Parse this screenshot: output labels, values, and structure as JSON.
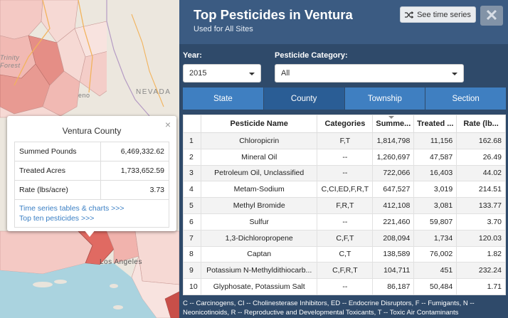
{
  "map": {
    "labels": {
      "nevada": "NEVADA",
      "trinity_1": "Trinity",
      "trinity_2": "Forest",
      "reno": "eno",
      "los_angeles": "Los Angeles"
    }
  },
  "popup": {
    "title": "Ventura County",
    "close": "×",
    "rows": [
      {
        "label": "Summed Pounds",
        "value": "6,469,332.62"
      },
      {
        "label": "Treated Acres",
        "value": "1,733,652.59"
      },
      {
        "label": "Rate (lbs/acre)",
        "value": "3.73"
      }
    ],
    "links": {
      "time_series": "Time series tables & charts >>>",
      "top_ten": "Top ten pesticides >>>"
    }
  },
  "panel": {
    "title": "Top Pesticides in Ventura",
    "subtitle": "Used for All Sites",
    "time_series_button": "See time series",
    "close_button": "✕",
    "year": {
      "label": "Year:",
      "value": "2015"
    },
    "category": {
      "label": "Pesticide Category:",
      "value": "All"
    },
    "tabs": [
      {
        "label": "State",
        "active": false
      },
      {
        "label": "County",
        "active": true
      },
      {
        "label": "Township",
        "active": false
      },
      {
        "label": "Section",
        "active": false
      }
    ],
    "table": {
      "headers": [
        "",
        "Pesticide Name",
        "Categories",
        "Summe...",
        "Treated ...",
        "Rate (lb..."
      ],
      "rows": [
        [
          "1",
          "Chloropicrin",
          "F,T",
          "1,814,798",
          "11,156",
          "162.68"
        ],
        [
          "2",
          "Mineral Oil",
          "--",
          "1,260,697",
          "47,587",
          "26.49"
        ],
        [
          "3",
          "Petroleum Oil, Unclassified",
          "--",
          "722,066",
          "16,403",
          "44.02"
        ],
        [
          "4",
          "Metam-Sodium",
          "C,CI,ED,F,R,T",
          "647,527",
          "3,019",
          "214.51"
        ],
        [
          "5",
          "Methyl Bromide",
          "F,R,T",
          "412,108",
          "3,081",
          "133.77"
        ],
        [
          "6",
          "Sulfur",
          "--",
          "221,460",
          "59,807",
          "3.70"
        ],
        [
          "7",
          "1,3-Dichloropropene",
          "C,F,T",
          "208,094",
          "1,734",
          "120.03"
        ],
        [
          "8",
          "Captan",
          "C,T",
          "138,589",
          "76,002",
          "1.82"
        ],
        [
          "9",
          "Potassium N-Methyldithiocarb...",
          "C,F,R,T",
          "104,711",
          "451",
          "232.24"
        ],
        [
          "10",
          "Glyphosate, Potassium Salt",
          "--",
          "86,187",
          "50,484",
          "1.71"
        ]
      ]
    },
    "legend": "C -- Carcinogens, CI -- Cholinesterase Inhibitors, ED -- Endocrine Disruptors, F -- Fumigants, N -- Neonicotinoids, R -- Reproductive and Developmental Toxicants, T -- Toxic Air Contaminants"
  }
}
